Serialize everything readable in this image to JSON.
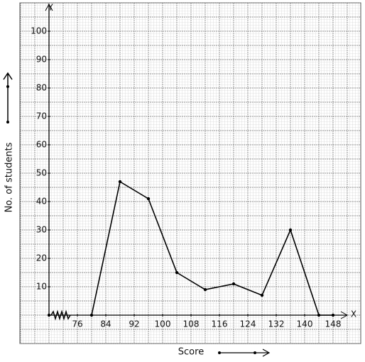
{
  "chart_data": {
    "type": "line",
    "x_label": "Score",
    "y_label": "No. of students",
    "x_axis_name": "X",
    "y_axis_name": "Y",
    "x": [
      80,
      88,
      96,
      104,
      112,
      120,
      128,
      136,
      144,
      148
    ],
    "values": [
      0,
      47,
      41,
      15,
      9,
      11,
      7,
      30,
      0,
      0
    ],
    "color": "#000000",
    "xlim": [
      68,
      152
    ],
    "ylim": [
      0,
      110
    ],
    "xticks": [
      76,
      84,
      92,
      100,
      108,
      116,
      124,
      132,
      140,
      148
    ],
    "yticks": [
      10,
      20,
      30,
      40,
      50,
      60,
      70,
      80,
      90,
      100
    ],
    "grid": true
  }
}
